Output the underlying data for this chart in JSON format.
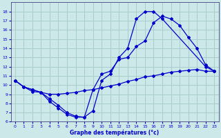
{
  "xlabel": "Graphe des températures (°c)",
  "bg_color": "#cce8e8",
  "grid_color": "#aacccc",
  "line_color": "#0000cc",
  "xlim": [
    -0.5,
    23.5
  ],
  "ylim": [
    6,
    19
  ],
  "xticks": [
    0,
    1,
    2,
    3,
    4,
    5,
    6,
    7,
    8,
    9,
    10,
    11,
    12,
    13,
    14,
    15,
    16,
    17,
    18,
    19,
    20,
    21,
    22,
    23
  ],
  "yticks": [
    6,
    7,
    8,
    9,
    10,
    11,
    12,
    13,
    14,
    15,
    16,
    17,
    18
  ],
  "line1_x": [
    0,
    1,
    2,
    3,
    4,
    5,
    6,
    7,
    8,
    9,
    10,
    11,
    12,
    13,
    14,
    15,
    16,
    17,
    22,
    23
  ],
  "line1_y": [
    10.5,
    9.8,
    9.5,
    9.2,
    8.2,
    7.5,
    6.8,
    6.5,
    6.5,
    7.2,
    10.5,
    11.2,
    13.0,
    14.0,
    17.2,
    18.0,
    18.0,
    17.2,
    12.0,
    11.5
  ],
  "line2_x": [
    0,
    1,
    2,
    3,
    4,
    5,
    6,
    7,
    8,
    9,
    10,
    11,
    12,
    13,
    14,
    15,
    16,
    17,
    18,
    19,
    20,
    21,
    22,
    23
  ],
  "line2_y": [
    10.5,
    9.8,
    9.5,
    9.2,
    8.5,
    7.8,
    7.0,
    6.6,
    6.5,
    9.5,
    11.2,
    11.5,
    12.8,
    13.0,
    14.2,
    14.8,
    16.8,
    17.5,
    17.2,
    16.5,
    15.2,
    14.0,
    12.2,
    11.5
  ],
  "line3_x": [
    0,
    1,
    2,
    3,
    4,
    5,
    6,
    7,
    8,
    9,
    10,
    11,
    12,
    13,
    14,
    15,
    16,
    17,
    18,
    19,
    20,
    21,
    22,
    23
  ],
  "line3_y": [
    10.5,
    9.8,
    9.3,
    9.2,
    9.0,
    9.0,
    9.1,
    9.2,
    9.4,
    9.5,
    9.7,
    9.9,
    10.1,
    10.4,
    10.6,
    10.9,
    11.0,
    11.2,
    11.4,
    11.5,
    11.6,
    11.7,
    11.5,
    11.5
  ]
}
